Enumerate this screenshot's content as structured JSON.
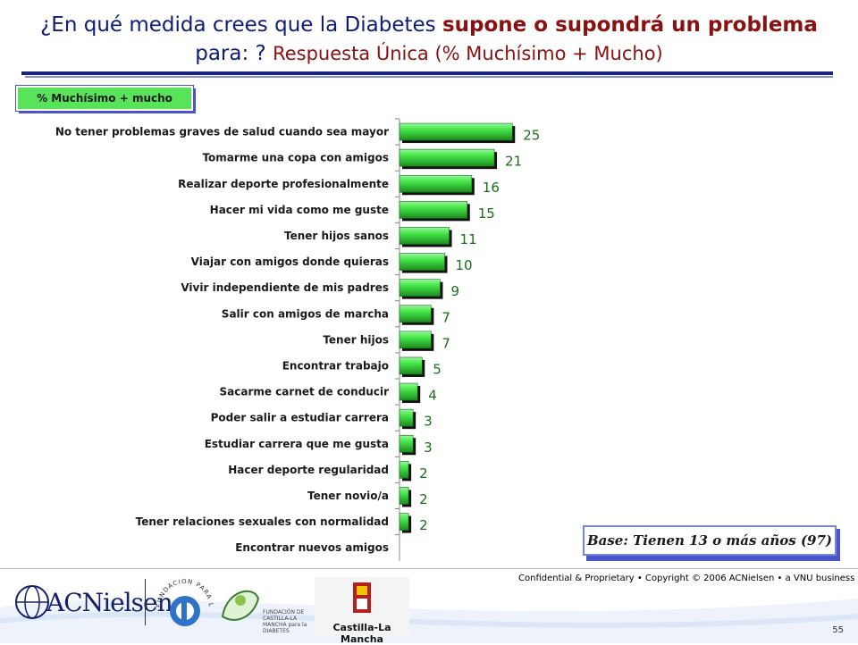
{
  "header": {
    "line1_pre": "¿En qué medida crees que la Diabetes ",
    "line1_hl": "supone o supondrá un problema",
    "line2_pre": "para: ? ",
    "line2_red": "Respuesta Única (% Muchísimo + Mucho)"
  },
  "pill_label": "% Muchísimo + mucho",
  "base_note": "Base: Tienen 13 o más años (97)",
  "colors": {
    "bar": "#47e84a",
    "bar_dark": "#1c8a1f",
    "value_text": "#187018",
    "title_blue": "#0d1b7a",
    "title_red": "#8b1010"
  },
  "chart_data": {
    "type": "bar",
    "orientation": "horizontal",
    "categories": [
      "No tener problemas graves de salud cuando sea mayor",
      "Tomarme una copa con amigos",
      "Realizar deporte profesionalmente",
      "Hacer mi vida como me guste",
      "Tener hijos sanos",
      "Viajar con amigos donde quieras",
      "Vivir independiente de mis padres",
      "Salir con amigos de marcha",
      "Tener hijos",
      "Encontrar trabajo",
      "Sacarme carnet de conducir",
      "Poder salir a estudiar carrera",
      "Estudiar carrera que me gusta",
      "Hacer deporte regularidad",
      "Tener  novio/a",
      "Tener relaciones sexuales con normalidad",
      "Encontrar nuevos amigos"
    ],
    "values": [
      25,
      21,
      16,
      15,
      11,
      10,
      9,
      7,
      7,
      5,
      4,
      3,
      3,
      2,
      2,
      2,
      null
    ],
    "value_labels": [
      "25",
      "21",
      "16",
      "15",
      "11",
      "10",
      "9",
      "7",
      "7",
      "5",
      "4",
      "3",
      "3",
      "2",
      "2",
      "2",
      ""
    ],
    "xlim": [
      0,
      100
    ]
  },
  "footer": {
    "confidential": "Confidential & Proprietary • Copyright © 2006 ACNielsen • a VNU business",
    "page_number": "55",
    "logo_acn": "ACNielsen",
    "logo_fundacion_arc": "FUNDACION PARA LA DIABETES",
    "logo_castilla_text": "FUNDACIÓN DE CASTILLA-LA MANCHA para la DIABETES",
    "logo_clm": "Castilla-La Mancha"
  }
}
